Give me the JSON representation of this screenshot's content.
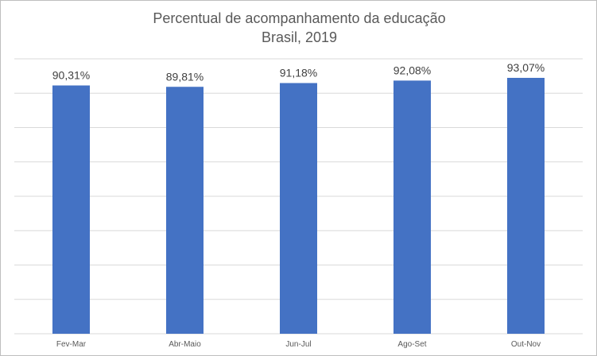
{
  "chart_data": {
    "type": "bar",
    "title": "Percentual de acompanhamento da educação",
    "subtitle": "Brasil, 2019",
    "categories": [
      "Fev-Mar",
      "Abr-Maio",
      "Jun-Jul",
      "Ago-Set",
      "Out-Nov"
    ],
    "values": [
      90.31,
      89.81,
      91.18,
      92.08,
      93.07
    ],
    "data_labels": [
      "90,31%",
      "89,81%",
      "91,18%",
      "92,08%",
      "93,07%"
    ],
    "ylim": [
      0,
      100
    ],
    "gridlines": true,
    "legend": "none",
    "bar_color": "#4472c4",
    "gridline_color": "#d9d9d9"
  }
}
